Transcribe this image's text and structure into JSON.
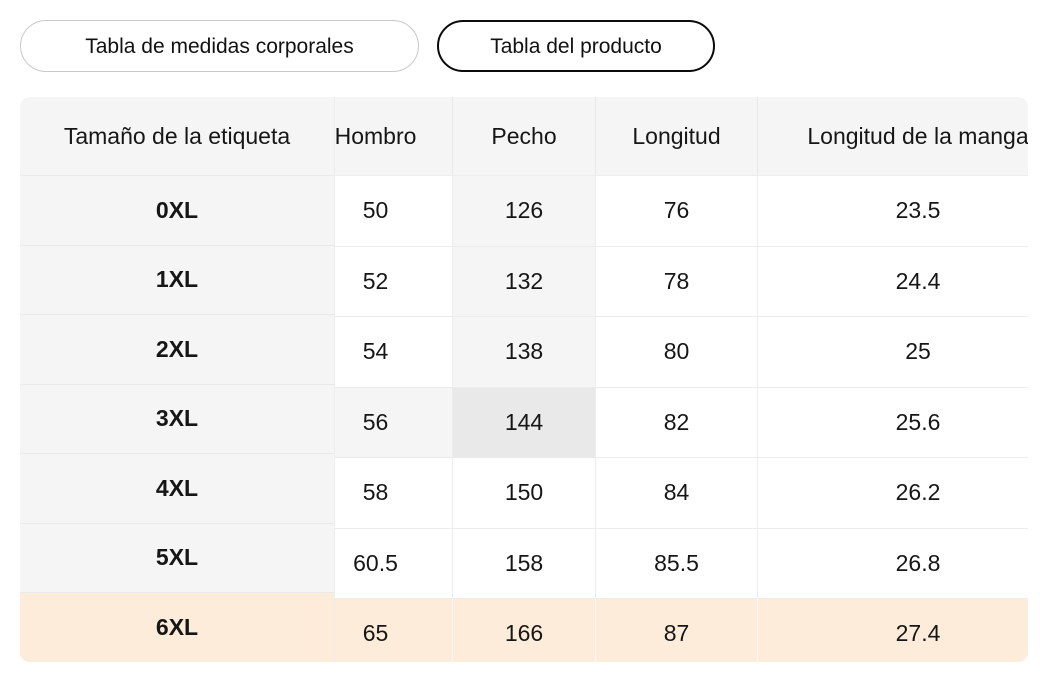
{
  "tabs": [
    {
      "label": "Tabla de medidas corporales",
      "active": false
    },
    {
      "label": "Tabla del producto",
      "active": true
    }
  ],
  "table": {
    "columns": [
      "Tamaño de la etiqueta",
      "Hombro",
      "Pecho",
      "Longitud",
      "Longitud de la manga"
    ],
    "rows": [
      {
        "size": "0XL",
        "hombro": "50",
        "pecho": "126",
        "longitud": "76",
        "manga": "23.5"
      },
      {
        "size": "1XL",
        "hombro": "52",
        "pecho": "132",
        "longitud": "78",
        "manga": "24.4"
      },
      {
        "size": "2XL",
        "hombro": "54",
        "pecho": "138",
        "longitud": "80",
        "manga": "25"
      },
      {
        "size": "3XL",
        "hombro": "56",
        "pecho": "144",
        "longitud": "82",
        "manga": "25.6"
      },
      {
        "size": "4XL",
        "hombro": "58",
        "pecho": "150",
        "longitud": "84",
        "manga": "26.2"
      },
      {
        "size": "5XL",
        "hombro": "60.5",
        "pecho": "158",
        "longitud": "85.5",
        "manga": "26.8"
      },
      {
        "size": "6XL",
        "hombro": "65",
        "pecho": "166",
        "longitud": "87",
        "manga": "27.4"
      }
    ],
    "selected_cell": {
      "row": "3XL",
      "column": "Pecho",
      "value": "144"
    },
    "highlighted_row": "6XL"
  },
  "colors": {
    "header_bg": "#f5f5f6",
    "column_highlight": "#f5f5f6",
    "selected_cell_bg": "#e9e9ea",
    "highlighted_row_bg": "#fdecd9",
    "active_tab_border": "#0b0b0b",
    "inactive_tab_border": "#c9c9c9",
    "divider": "#ededed",
    "text": "#161616"
  }
}
